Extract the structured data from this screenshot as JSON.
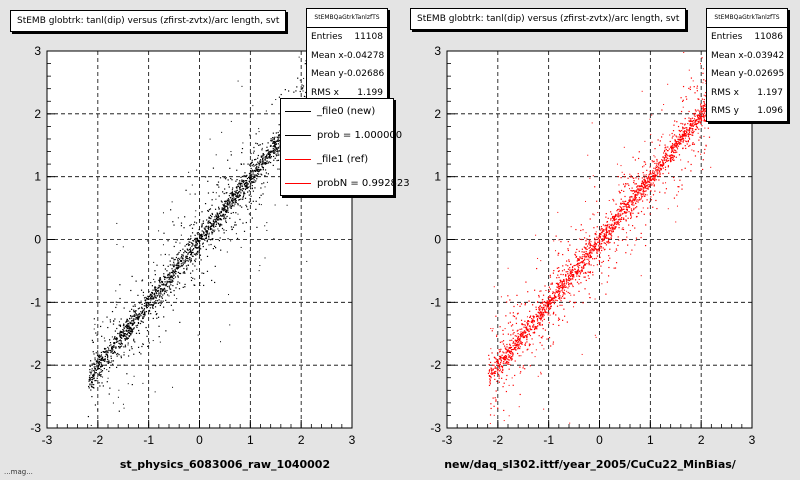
{
  "footer_text": "...mag...",
  "stats_labels": {
    "entries": "Entries",
    "mean_x": "Mean x",
    "mean_y": "Mean y",
    "rms_x": "RMS x",
    "rms_y": "RMS y"
  },
  "colors": {
    "black_series": "#000000",
    "red_series": "#ff0000",
    "background": "#e4e4e4"
  },
  "chart_data": [
    {
      "type": "scatter",
      "title": "StEMB globtrk: tanl(dip) versus (zfirst-zvtx)/arc length, svt",
      "xlabel": "st_physics_6083006_raw_1040002",
      "ylabel": "",
      "xlim": [
        -3,
        3
      ],
      "ylim": [
        -3,
        3
      ],
      "xticks": [
        -3,
        -2,
        -1,
        0,
        1,
        2,
        3
      ],
      "yticks": [
        -3,
        -2,
        -1,
        0,
        1,
        2,
        3
      ],
      "grid": true,
      "marker_color": "#000000",
      "distribution": {
        "relation": "y ≈ x",
        "x_range": [
          -2.2,
          2.2
        ]
      },
      "stats": {
        "name": "StEMBQaGtrkTanlzfTS",
        "entries": "11108",
        "mean_x": "-0.04278",
        "mean_y": "-0.02686",
        "rms_x": "1.199"
      },
      "legend": {
        "position": "top-right",
        "entries": [
          {
            "label": "_file0 (new)",
            "color": "#000000"
          },
          {
            "label": "prob = 1.000000",
            "color": "#000000"
          },
          {
            "label": "_file1 (ref)",
            "color": "#ff0000"
          },
          {
            "label": "probN = 0.992823",
            "color": "#ff0000"
          }
        ]
      }
    },
    {
      "type": "scatter",
      "title": "StEMB globtrk: tanl(dip) versus (zfirst-zvtx)/arc length, svt",
      "xlabel": "new/daq_sl302.ittf/year_2005/CuCu22_MinBias/",
      "ylabel": "",
      "xlim": [
        -3,
        3
      ],
      "ylim": [
        -3,
        3
      ],
      "xticks": [
        -3,
        -2,
        -1,
        0,
        1,
        2,
        3
      ],
      "yticks": [
        -3,
        -2,
        -1,
        0,
        1,
        2,
        3
      ],
      "grid": true,
      "marker_color": "#ff0000",
      "distribution": {
        "relation": "y ≈ x",
        "x_range": [
          -2.2,
          2.2
        ]
      },
      "stats": {
        "name": "StEMBQaGtrkTanlzfTS",
        "entries": "11086",
        "mean_x": "-0.03942",
        "mean_y": "-0.02695",
        "rms_x": "1.197",
        "rms_y": "1.096"
      }
    }
  ]
}
